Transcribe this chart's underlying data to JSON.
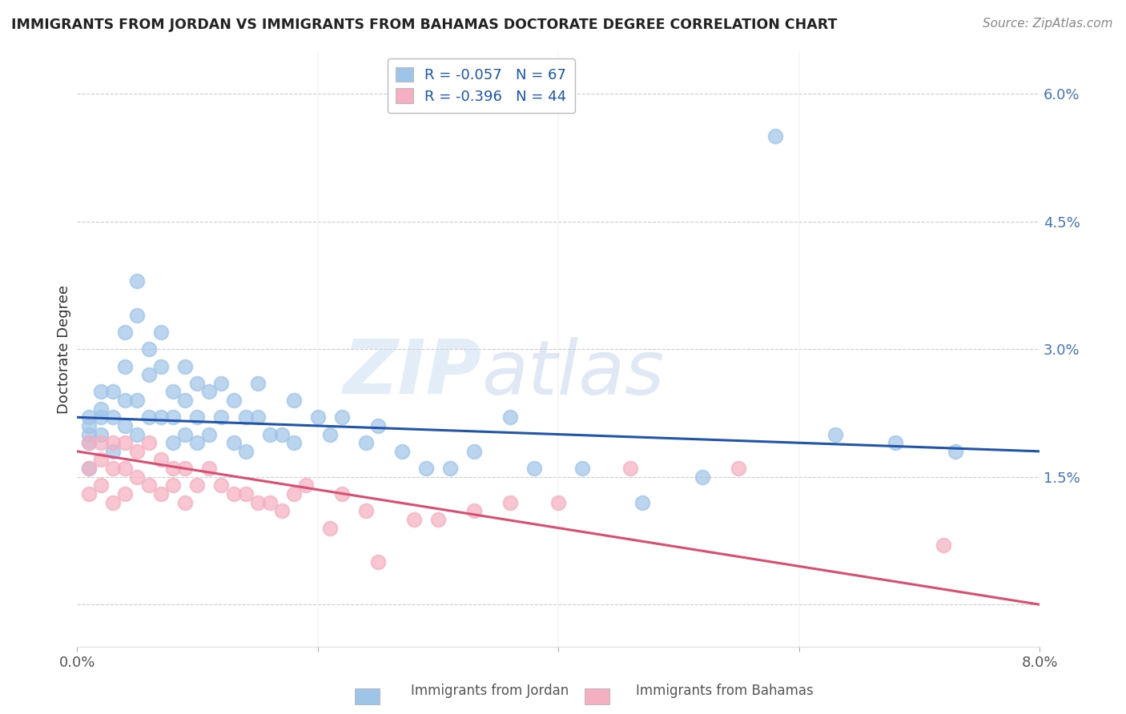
{
  "title": "IMMIGRANTS FROM JORDAN VS IMMIGRANTS FROM BAHAMAS DOCTORATE DEGREE CORRELATION CHART",
  "source": "Source: ZipAtlas.com",
  "ylabel": "Doctorate Degree",
  "yticks": [
    0.0,
    0.015,
    0.03,
    0.045,
    0.06
  ],
  "ytick_labels": [
    "",
    "1.5%",
    "3.0%",
    "4.5%",
    "6.0%"
  ],
  "xlim": [
    0.0,
    0.08
  ],
  "ylim": [
    -0.005,
    0.065
  ],
  "jordan_color": "#9ec4e8",
  "bahamas_color": "#f4afc0",
  "jordan_line_color": "#2255aa",
  "bahamas_line_color": "#d94f72",
  "jordan_R": -0.057,
  "jordan_N": 67,
  "bahamas_R": -0.396,
  "bahamas_N": 44,
  "legend_label_jordan": "Immigrants from Jordan",
  "legend_label_bahamas": "Immigrants from Bahamas",
  "watermark": "ZIPatlas",
  "jordan_x": [
    0.001,
    0.001,
    0.001,
    0.001,
    0.001,
    0.002,
    0.002,
    0.002,
    0.002,
    0.003,
    0.003,
    0.003,
    0.004,
    0.004,
    0.004,
    0.004,
    0.005,
    0.005,
    0.005,
    0.005,
    0.006,
    0.006,
    0.006,
    0.007,
    0.007,
    0.007,
    0.008,
    0.008,
    0.008,
    0.009,
    0.009,
    0.009,
    0.01,
    0.01,
    0.01,
    0.011,
    0.011,
    0.012,
    0.012,
    0.013,
    0.013,
    0.014,
    0.014,
    0.015,
    0.015,
    0.016,
    0.017,
    0.018,
    0.018,
    0.02,
    0.021,
    0.022,
    0.024,
    0.025,
    0.027,
    0.029,
    0.031,
    0.033,
    0.036,
    0.038,
    0.042,
    0.047,
    0.052,
    0.058,
    0.063,
    0.068,
    0.073
  ],
  "jordan_y": [
    0.022,
    0.021,
    0.02,
    0.019,
    0.016,
    0.025,
    0.023,
    0.022,
    0.02,
    0.025,
    0.022,
    0.018,
    0.032,
    0.028,
    0.024,
    0.021,
    0.038,
    0.034,
    0.024,
    0.02,
    0.03,
    0.027,
    0.022,
    0.032,
    0.028,
    0.022,
    0.025,
    0.022,
    0.019,
    0.028,
    0.024,
    0.02,
    0.026,
    0.022,
    0.019,
    0.025,
    0.02,
    0.026,
    0.022,
    0.024,
    0.019,
    0.022,
    0.018,
    0.026,
    0.022,
    0.02,
    0.02,
    0.024,
    0.019,
    0.022,
    0.02,
    0.022,
    0.019,
    0.021,
    0.018,
    0.016,
    0.016,
    0.018,
    0.022,
    0.016,
    0.016,
    0.012,
    0.015,
    0.055,
    0.02,
    0.019,
    0.018
  ],
  "bahamas_x": [
    0.001,
    0.001,
    0.001,
    0.002,
    0.002,
    0.002,
    0.003,
    0.003,
    0.003,
    0.004,
    0.004,
    0.004,
    0.005,
    0.005,
    0.006,
    0.006,
    0.007,
    0.007,
    0.008,
    0.008,
    0.009,
    0.009,
    0.01,
    0.011,
    0.012,
    0.013,
    0.014,
    0.015,
    0.016,
    0.017,
    0.018,
    0.019,
    0.021,
    0.022,
    0.024,
    0.025,
    0.028,
    0.03,
    0.033,
    0.036,
    0.04,
    0.046,
    0.055,
    0.072
  ],
  "bahamas_y": [
    0.019,
    0.016,
    0.013,
    0.019,
    0.017,
    0.014,
    0.019,
    0.016,
    0.012,
    0.019,
    0.016,
    0.013,
    0.018,
    0.015,
    0.019,
    0.014,
    0.017,
    0.013,
    0.016,
    0.014,
    0.016,
    0.012,
    0.014,
    0.016,
    0.014,
    0.013,
    0.013,
    0.012,
    0.012,
    0.011,
    0.013,
    0.014,
    0.009,
    0.013,
    0.011,
    0.005,
    0.01,
    0.01,
    0.011,
    0.012,
    0.012,
    0.016,
    0.016,
    0.007
  ]
}
